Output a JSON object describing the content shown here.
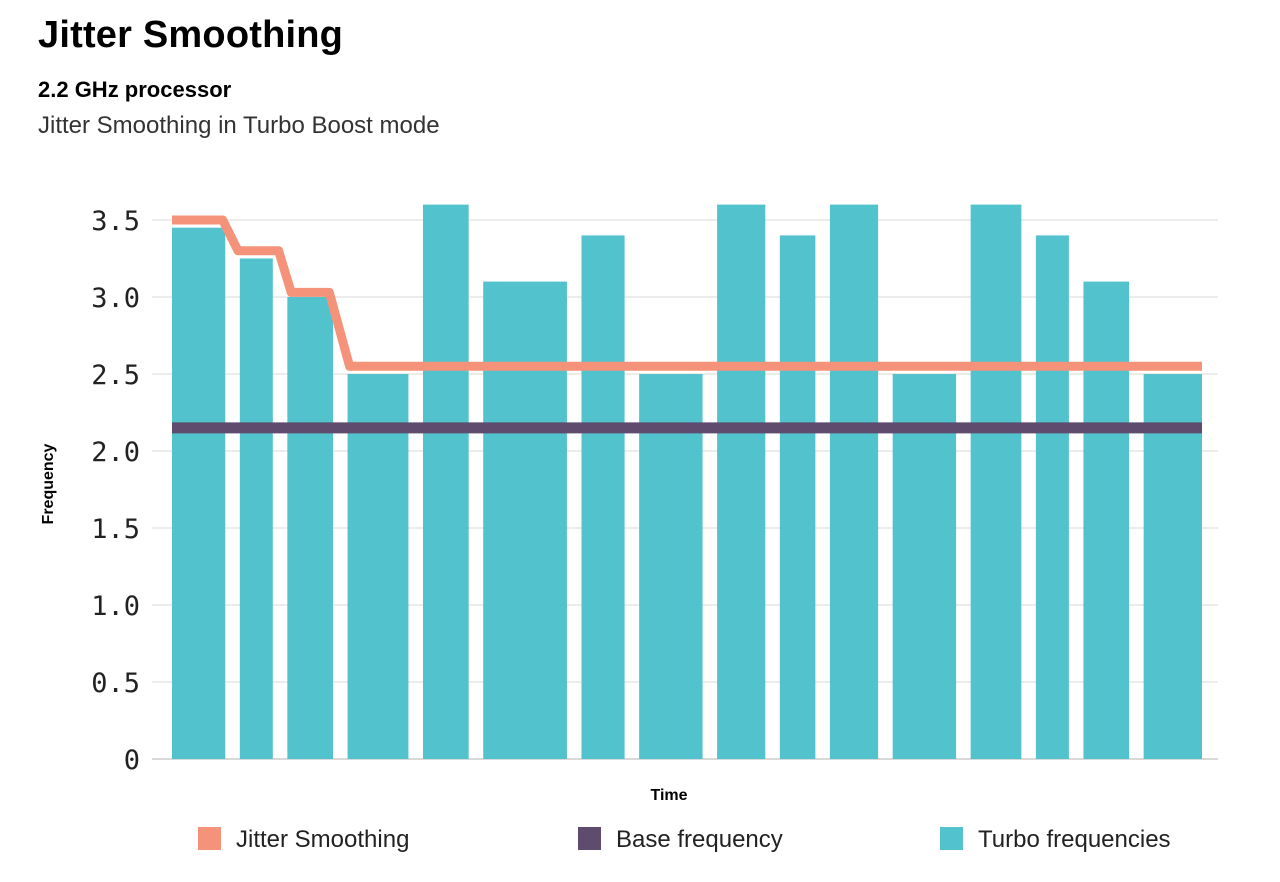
{
  "header": {
    "title": "Jitter Smoothing",
    "subtitle": "2.2 GHz processor",
    "description": "Jitter Smoothing in Turbo Boost mode"
  },
  "colors": {
    "turbo": "#52c2cc",
    "smoothing": "#f4937a",
    "base": "#5e4b6d",
    "grid": "#e6e6e6"
  },
  "chart_data": {
    "type": "bar",
    "xlabel": "Time",
    "ylabel": "Frequency",
    "ylim": [
      0,
      3.5
    ],
    "yticks": [
      "0",
      "0.5",
      "1.0",
      "1.5",
      "2.0",
      "2.5",
      "3.0",
      "3.5"
    ],
    "grid": true,
    "legend_position": "bottom",
    "series": [
      {
        "name": "Turbo frequencies",
        "kind": "bar",
        "values": [
          3.45,
          3.25,
          3.0,
          2.5,
          3.6,
          3.1,
          3.4,
          2.5,
          3.6,
          3.4,
          3.6,
          2.5,
          3.6,
          3.4,
          3.1,
          2.5
        ],
        "widths": [
          1.05,
          0.65,
          0.9,
          1.2,
          0.9,
          1.65,
          0.85,
          1.25,
          0.95,
          0.7,
          0.95,
          1.25,
          1.0,
          0.65,
          0.9,
          1.15
        ]
      },
      {
        "name": "Jitter Smoothing",
        "kind": "line",
        "points": [
          [
            0,
            3.5
          ],
          [
            1.0,
            3.5
          ],
          [
            1.3,
            3.3
          ],
          [
            2.1,
            3.3
          ],
          [
            2.35,
            3.03
          ],
          [
            3.1,
            3.03
          ],
          [
            3.5,
            2.55
          ],
          [
            20.3,
            2.55
          ]
        ]
      },
      {
        "name": "Base frequency",
        "kind": "hline",
        "value": 2.15
      }
    ],
    "x_extent": [
      0,
      20.3
    ]
  }
}
